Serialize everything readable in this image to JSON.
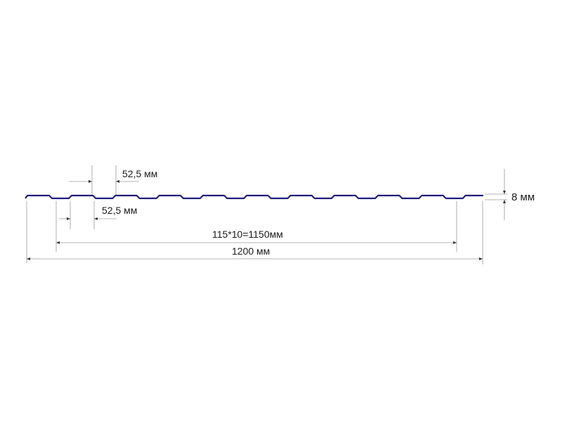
{
  "dimensions": {
    "pitch_top": "52,5 мм",
    "pitch_bottom": "52,5 мм",
    "height": "8 мм",
    "useful_width": "115*10=1150мм",
    "total_width": "1200 мм"
  },
  "colors": {
    "profile": "#1f1d7a",
    "dim_line": "#9a9a9a"
  }
}
